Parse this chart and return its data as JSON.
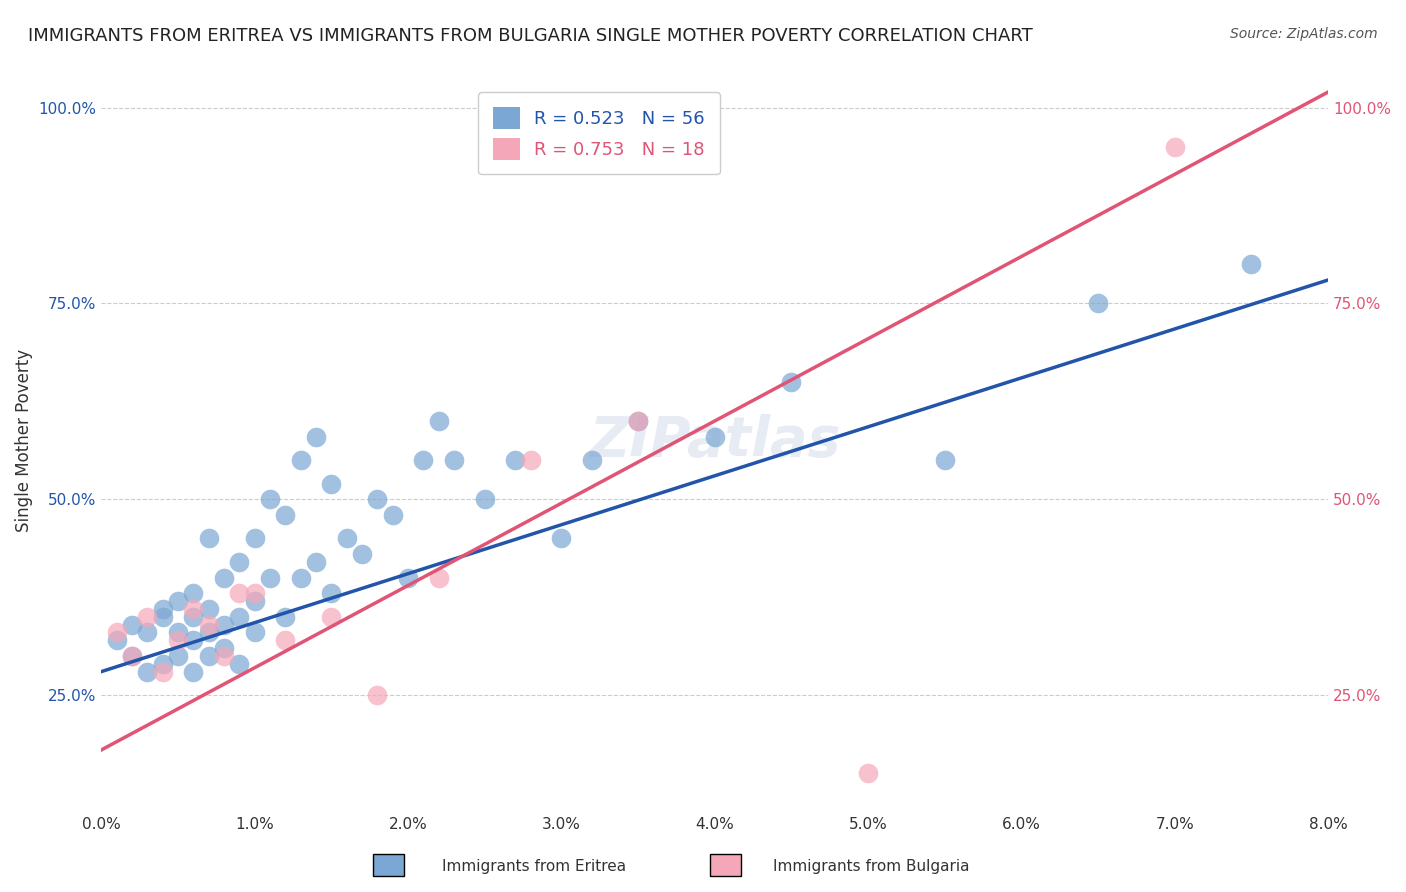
{
  "title": "IMMIGRANTS FROM ERITREA VS IMMIGRANTS FROM BULGARIA SINGLE MOTHER POVERTY CORRELATION CHART",
  "source": "Source: ZipAtlas.com",
  "xlabel": "",
  "ylabel": "Single Mother Poverty",
  "watermark": "ZIPatlas",
  "xlim": [
    0.0,
    0.08
  ],
  "ylim": [
    0.1,
    1.05
  ],
  "xticks": [
    0.0,
    0.01,
    0.02,
    0.03,
    0.04,
    0.05,
    0.06,
    0.07,
    0.08
  ],
  "xticklabels": [
    "0.0%",
    "1.0%",
    "2.0%",
    "3.0%",
    "4.0%",
    "5.0%",
    "6.0%",
    "7.0%",
    "8.0%"
  ],
  "yticks": [
    0.25,
    0.5,
    0.75,
    1.0
  ],
  "yticklabels": [
    "25.0%",
    "50.0%",
    "75.0%",
    "100.0%"
  ],
  "eritrea_color": "#7ba7d4",
  "bulgaria_color": "#f4a7b9",
  "eritrea_line_color": "#2255aa",
  "bulgaria_line_color": "#e05575",
  "eritrea_R": 0.523,
  "eritrea_N": 56,
  "bulgaria_R": 0.753,
  "bulgaria_N": 18,
  "eritrea_scatter_x": [
    0.001,
    0.002,
    0.002,
    0.003,
    0.003,
    0.004,
    0.004,
    0.004,
    0.005,
    0.005,
    0.005,
    0.006,
    0.006,
    0.006,
    0.006,
    0.007,
    0.007,
    0.007,
    0.007,
    0.008,
    0.008,
    0.008,
    0.009,
    0.009,
    0.009,
    0.01,
    0.01,
    0.01,
    0.011,
    0.011,
    0.012,
    0.012,
    0.013,
    0.013,
    0.014,
    0.014,
    0.015,
    0.015,
    0.016,
    0.017,
    0.018,
    0.019,
    0.02,
    0.021,
    0.022,
    0.023,
    0.025,
    0.027,
    0.03,
    0.032,
    0.035,
    0.04,
    0.045,
    0.055,
    0.065,
    0.075
  ],
  "eritrea_scatter_y": [
    0.32,
    0.3,
    0.34,
    0.28,
    0.33,
    0.35,
    0.29,
    0.36,
    0.3,
    0.33,
    0.37,
    0.28,
    0.32,
    0.35,
    0.38,
    0.3,
    0.33,
    0.36,
    0.45,
    0.31,
    0.34,
    0.4,
    0.29,
    0.35,
    0.42,
    0.33,
    0.37,
    0.45,
    0.4,
    0.5,
    0.35,
    0.48,
    0.4,
    0.55,
    0.42,
    0.58,
    0.38,
    0.52,
    0.45,
    0.43,
    0.5,
    0.48,
    0.4,
    0.55,
    0.6,
    0.55,
    0.5,
    0.55,
    0.45,
    0.55,
    0.6,
    0.58,
    0.65,
    0.55,
    0.75,
    0.8
  ],
  "bulgaria_scatter_x": [
    0.001,
    0.002,
    0.003,
    0.004,
    0.005,
    0.006,
    0.007,
    0.008,
    0.009,
    0.01,
    0.012,
    0.015,
    0.018,
    0.022,
    0.028,
    0.035,
    0.05,
    0.07
  ],
  "bulgaria_scatter_y": [
    0.33,
    0.3,
    0.35,
    0.28,
    0.32,
    0.36,
    0.34,
    0.3,
    0.38,
    0.38,
    0.32,
    0.35,
    0.25,
    0.4,
    0.55,
    0.6,
    0.15,
    0.95
  ],
  "eritrea_line_x": [
    0.0,
    0.08
  ],
  "eritrea_line_y": [
    0.28,
    0.78
  ],
  "bulgaria_line_x": [
    0.0,
    0.08
  ],
  "bulgaria_line_y": [
    0.18,
    1.02
  ],
  "background_color": "#ffffff",
  "grid_color": "#cccccc",
  "title_fontsize": 13,
  "axis_label_fontsize": 12,
  "tick_fontsize": 11,
  "legend_fontsize": 13,
  "watermark_fontsize": 40,
  "watermark_color": "#d0d8e8",
  "watermark_alpha": 0.5
}
